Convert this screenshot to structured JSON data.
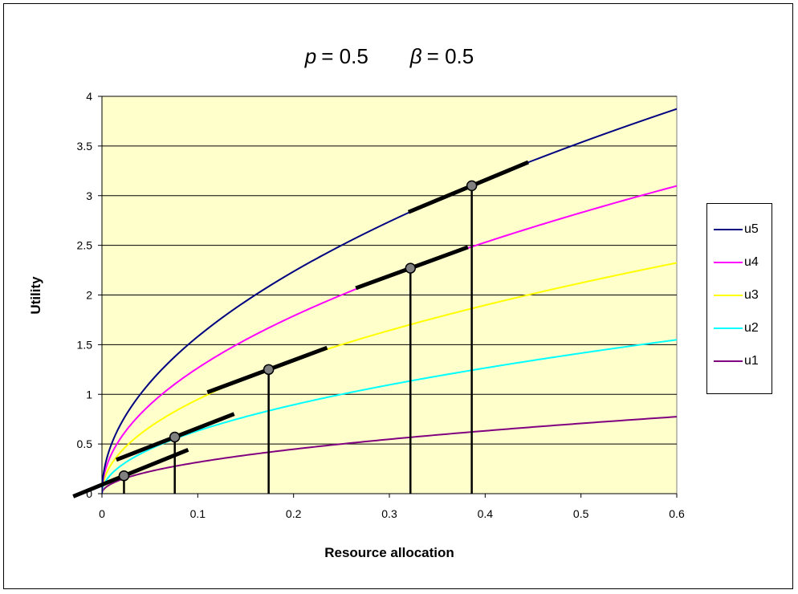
{
  "chart_data": {
    "type": "line",
    "title": "p = 0.5      β = 0.5",
    "title_parts": {
      "p_symbol": "p",
      "p_value": "= 0.5",
      "beta_symbol": "β",
      "beta_value": "= 0.5"
    },
    "xlabel": "Resource allocation",
    "ylabel": "Utility",
    "xlim": [
      0,
      0.6
    ],
    "ylim": [
      0,
      4
    ],
    "x_ticks": [
      "0",
      "0.1",
      "0.2",
      "0.3",
      "0.4",
      "0.5",
      "0.6"
    ],
    "y_ticks": [
      "0",
      "0.5",
      "1",
      "1.5",
      "2",
      "2.5",
      "3",
      "3.5",
      "4"
    ],
    "grid": "horizontal",
    "plot_background": "#FFFFCC",
    "legend_position": "right",
    "series": [
      {
        "name": "u5",
        "color": "#000080",
        "coef": 5,
        "values_at": {
          "0.1": 1.58,
          "0.2": 2.24,
          "0.3": 2.74,
          "0.4": 3.16,
          "0.5": 3.54,
          "0.6": 3.87
        }
      },
      {
        "name": "u4",
        "color": "#FF00FF",
        "coef": 4,
        "values_at": {
          "0.1": 1.26,
          "0.2": 1.79,
          "0.3": 2.19,
          "0.4": 2.53,
          "0.5": 2.83,
          "0.6": 3.1
        }
      },
      {
        "name": "u3",
        "color": "#FFFF00",
        "coef": 3,
        "values_at": {
          "0.1": 0.95,
          "0.2": 1.34,
          "0.3": 1.64,
          "0.4": 1.9,
          "0.5": 2.12,
          "0.6": 2.32
        }
      },
      {
        "name": "u2",
        "color": "#00FFFF",
        "coef": 2,
        "values_at": {
          "0.1": 0.63,
          "0.2": 0.89,
          "0.3": 1.1,
          "0.4": 1.26,
          "0.5": 1.41,
          "0.6": 1.55
        }
      },
      {
        "name": "u1",
        "color": "#800080",
        "coef": 1,
        "values_at": {
          "0.1": 0.32,
          "0.2": 0.45,
          "0.3": 0.55,
          "0.4": 0.63,
          "0.5": 0.71,
          "0.6": 0.77
        }
      }
    ],
    "tangent_points": [
      {
        "x": 0.023,
        "y": 0.18,
        "tangent_x_range": [
          -0.03,
          0.09
        ]
      },
      {
        "x": 0.076,
        "y": 0.57,
        "tangent_x_range": [
          0.015,
          0.138
        ]
      },
      {
        "x": 0.174,
        "y": 1.25,
        "tangent_x_range": [
          0.11,
          0.235
        ]
      },
      {
        "x": 0.322,
        "y": 2.27,
        "tangent_x_range": [
          0.265,
          0.382
        ]
      },
      {
        "x": 0.386,
        "y": 3.1,
        "tangent_x_range": [
          0.32,
          0.445
        ]
      }
    ]
  }
}
